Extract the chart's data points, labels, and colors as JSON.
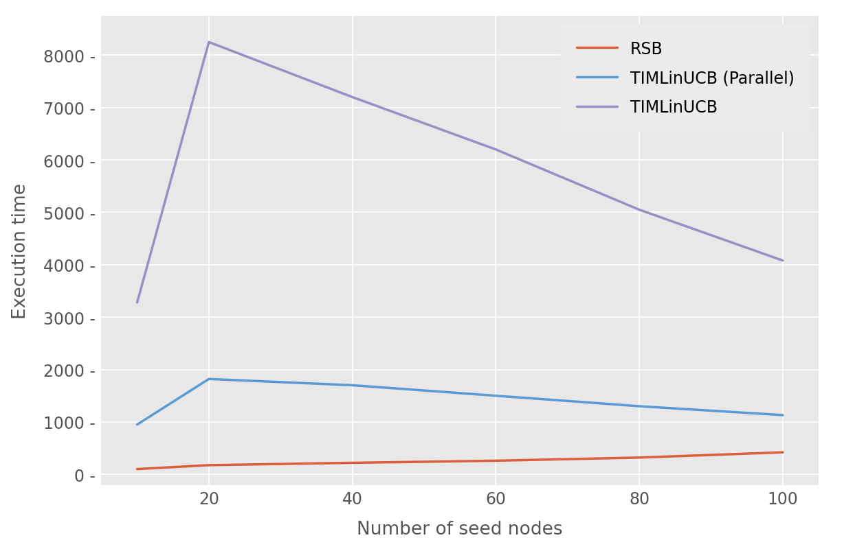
{
  "x": [
    10,
    20,
    40,
    60,
    80,
    100
  ],
  "rsb": [
    100,
    175,
    220,
    260,
    320,
    420
  ],
  "timlinucb_parallel": [
    950,
    1820,
    1700,
    1500,
    1300,
    1130
  ],
  "timlinucb": [
    3280,
    8250,
    7200,
    6200,
    5050,
    4080
  ],
  "rsb_color": "#d95f3b",
  "parallel_color": "#5b9bd5",
  "timlinucb_color": "#9b8ec4",
  "xlabel": "Number of seed nodes",
  "ylabel": "Execution time",
  "legend_labels": [
    "RSB",
    "TIMLinUCB (Parallel)",
    "TIMLinUCB"
  ],
  "plot_bg_color": "#e8e8e8",
  "fig_bg_color": "#ffffff",
  "legend_bg": "#ebebeb",
  "grid_color": "#ffffff",
  "ylim": [
    -200,
    8750
  ],
  "xlim": [
    5,
    105
  ],
  "xticks": [
    20,
    40,
    60,
    80,
    100
  ],
  "yticks": [
    0,
    1000,
    2000,
    3000,
    4000,
    5000,
    6000,
    7000,
    8000
  ],
  "linewidth": 2.5,
  "xlabel_fontsize": 19,
  "ylabel_fontsize": 19,
  "tick_fontsize": 17,
  "legend_fontsize": 17,
  "tick_color": "#555555",
  "label_color": "#555555"
}
